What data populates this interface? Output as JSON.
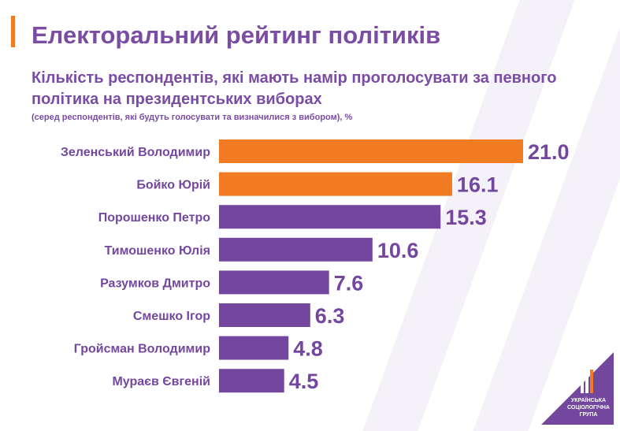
{
  "title": "Електоральний рейтинг політиків",
  "subtitle": "Кількість респондентів, які мають намір проголосувати за певного політика на президентських виборах",
  "note": "(серед респондентів, які будуть голосувати  та визначилися з вибором), %",
  "logo_text": [
    "УКРАЇНСЬКА",
    "СОЦІОЛОГІЧНА",
    "ГРУПА"
  ],
  "colors": {
    "purple": "#74479f",
    "orange": "#f07b22"
  },
  "chart_data": {
    "type": "bar",
    "orientation": "horizontal",
    "categories": [
      "Зеленський Володимир",
      "Бойко Юрій",
      "Порошенко Петро",
      "Тимошенко Юлія",
      "Разумков Дмитро",
      "Смешко Ігор",
      "Гройсман Володимир",
      "Мураєв Євгеній"
    ],
    "values": [
      21.0,
      16.1,
      15.3,
      10.6,
      7.6,
      6.3,
      4.8,
      4.5
    ],
    "labels": [
      "21.0",
      "16.1",
      "15.3",
      "10.6",
      "7.6",
      "6.3",
      "4.8",
      "4.5"
    ],
    "bar_colors": [
      "#f07b22",
      "#f07b22",
      "#74479f",
      "#74479f",
      "#74479f",
      "#74479f",
      "#74479f",
      "#74479f"
    ],
    "grid": false
  }
}
